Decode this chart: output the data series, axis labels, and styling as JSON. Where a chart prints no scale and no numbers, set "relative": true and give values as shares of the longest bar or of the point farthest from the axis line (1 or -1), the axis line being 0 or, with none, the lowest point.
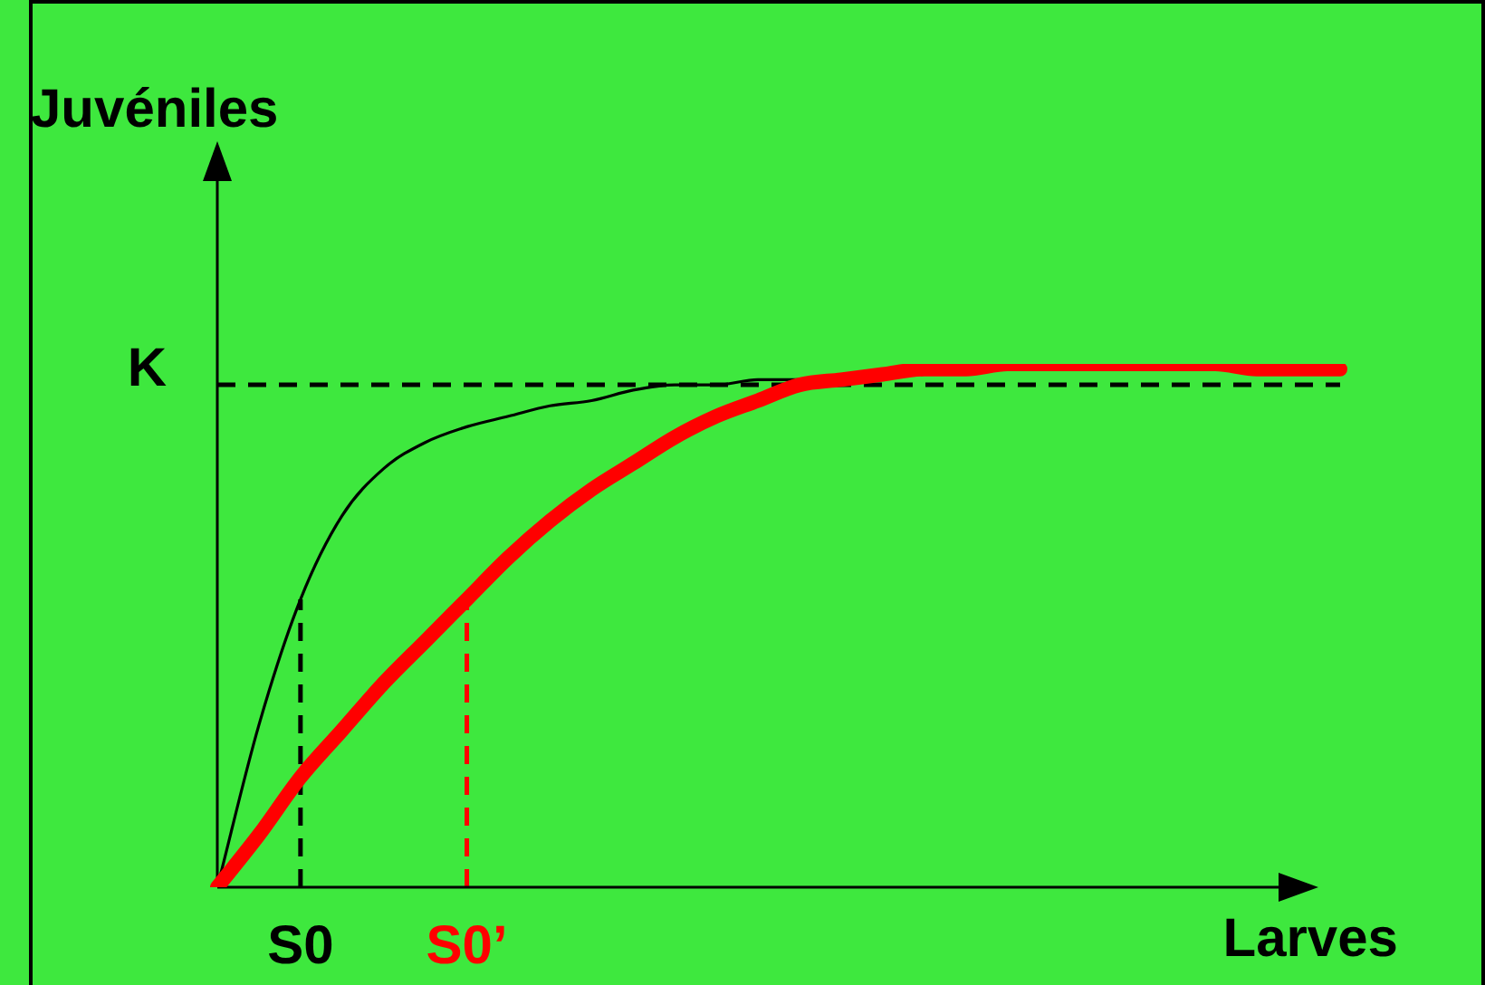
{
  "chart_data": {
    "type": "line",
    "relative": true,
    "xlabel": "Larves",
    "ylabel": "Juvéniles",
    "categories": [
      null,
      null,
      "S0",
      null,
      null,
      null,
      "S0’",
      null,
      null,
      null,
      null,
      null,
      null,
      null,
      null,
      null,
      null,
      null,
      null,
      null,
      null,
      null,
      null,
      null,
      null,
      null,
      null,
      null
    ],
    "series": [
      {
        "color": "#000000",
        "values": [
          0,
          0.31,
          0.55,
          0.71,
          0.8,
          0.85,
          0.88,
          0.9,
          0.92,
          0.93,
          0.95,
          0.96,
          0.96,
          0.97,
          0.97,
          null,
          null,
          null,
          null,
          null,
          null,
          null,
          null,
          null,
          null,
          null,
          null,
          null
        ]
      },
      {
        "color": "#ff0000",
        "values": [
          0,
          0.1,
          0.21,
          0.3,
          0.39,
          0.47,
          0.55,
          0.63,
          0.7,
          0.76,
          0.81,
          0.86,
          0.9,
          0.93,
          0.96,
          0.97,
          0.98,
          0.99,
          0.99,
          1,
          1,
          1,
          1,
          1,
          1,
          0.99,
          0.99,
          0.99
        ]
      }
    ],
    "ref_lines": [
      {
        "axis": "y",
        "value": 0.96,
        "label": "K",
        "color": "#000000",
        "line_style": "dashed"
      },
      {
        "axis": "x",
        "value": "S0",
        "color": "#000000",
        "line_style": "dashed"
      },
      {
        "axis": "x",
        "value": "S0’",
        "color": "#ff0000",
        "line_style": "dashed"
      }
    ]
  }
}
